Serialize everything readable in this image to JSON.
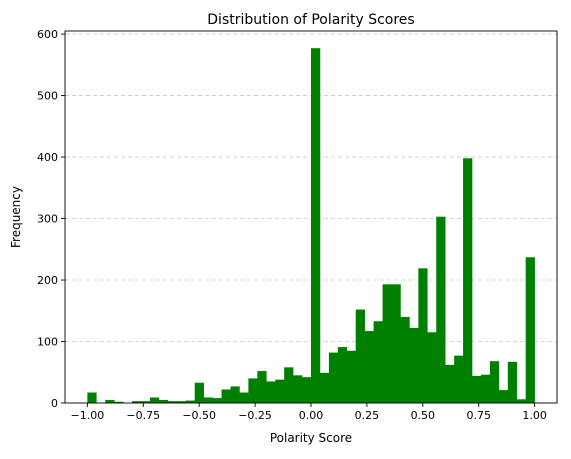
{
  "chart_data": {
    "type": "bar",
    "title": "Distribution of Polarity Scores",
    "xlabel": "Polarity Score",
    "ylabel": "Frequency",
    "xlim": [
      -1.1,
      1.1
    ],
    "ylim": [
      0,
      605
    ],
    "grid": {
      "y": true,
      "style": "dashed"
    },
    "bar_color": "#008000",
    "bin_edges": [
      -1.0,
      1.0
    ],
    "bin_count": 50,
    "values": [
      17,
      0,
      5,
      2,
      0,
      3,
      3,
      9,
      5,
      3,
      3,
      4,
      33,
      9,
      8,
      22,
      27,
      17,
      40,
      52,
      35,
      38,
      58,
      45,
      42,
      577,
      49,
      82,
      91,
      85,
      152,
      117,
      133,
      193,
      193,
      140,
      122,
      219,
      115,
      303,
      62,
      77,
      398,
      44,
      46,
      68,
      21,
      67,
      6,
      237
    ],
    "x_ticks": [
      -1.0,
      -0.75,
      -0.5,
      -0.25,
      0.0,
      0.25,
      0.5,
      0.75,
      1.0
    ],
    "x_tick_labels": [
      "−1.00",
      "−0.75",
      "−0.50",
      "−0.25",
      "0.00",
      "0.25",
      "0.50",
      "0.75",
      "1.00"
    ],
    "y_ticks": [
      0,
      100,
      200,
      300,
      400,
      500,
      600
    ],
    "y_tick_labels": [
      "0",
      "100",
      "200",
      "300",
      "400",
      "500",
      "600"
    ]
  }
}
